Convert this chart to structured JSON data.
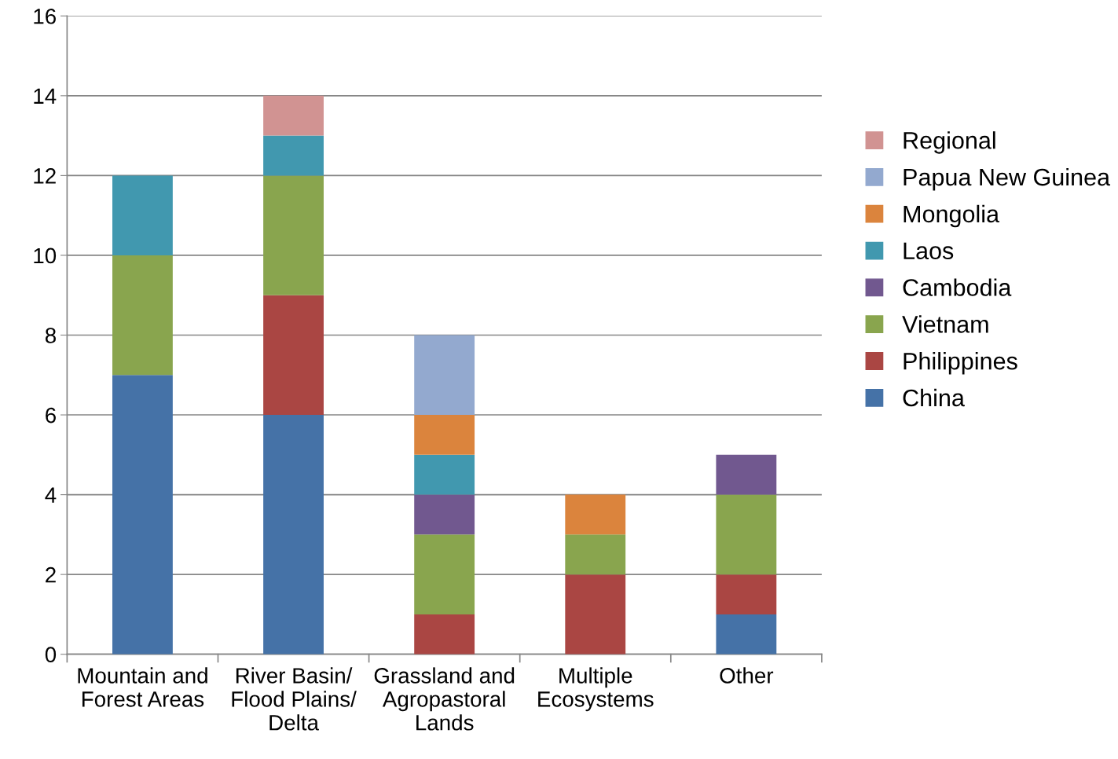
{
  "chart_data": {
    "type": "bar",
    "stacked": true,
    "categories": [
      "Mountain and\nForest Areas",
      "River Basin/\nFlood Plains/\nDelta",
      "Grassland and\nAgropastoral\nLands",
      "Multiple\nEcosystems",
      "Other"
    ],
    "series": [
      {
        "name": "China",
        "color": "#4572a7",
        "values": [
          7,
          6,
          0,
          0,
          1
        ]
      },
      {
        "name": "Philippines",
        "color": "#aa4643",
        "values": [
          0,
          3,
          1,
          2,
          1
        ]
      },
      {
        "name": "Vietnam",
        "color": "#89a54e",
        "values": [
          3,
          3,
          2,
          1,
          2
        ]
      },
      {
        "name": "Cambodia",
        "color": "#71588f",
        "values": [
          0,
          0,
          1,
          0,
          1
        ]
      },
      {
        "name": "Laos",
        "color": "#4198af",
        "values": [
          2,
          1,
          1,
          0,
          0
        ]
      },
      {
        "name": "Mongolia",
        "color": "#db843d",
        "values": [
          0,
          0,
          1,
          1,
          0
        ]
      },
      {
        "name": "Papua New Guinea",
        "color": "#93a9cf",
        "values": [
          0,
          0,
          2,
          0,
          0
        ]
      },
      {
        "name": "Regional",
        "color": "#d19392",
        "values": [
          0,
          1,
          0,
          0,
          0
        ]
      }
    ],
    "ylim": [
      0,
      16
    ],
    "yticks": [
      0,
      2,
      4,
      6,
      8,
      10,
      12,
      14,
      16
    ],
    "grid": "y",
    "legend": "right"
  }
}
